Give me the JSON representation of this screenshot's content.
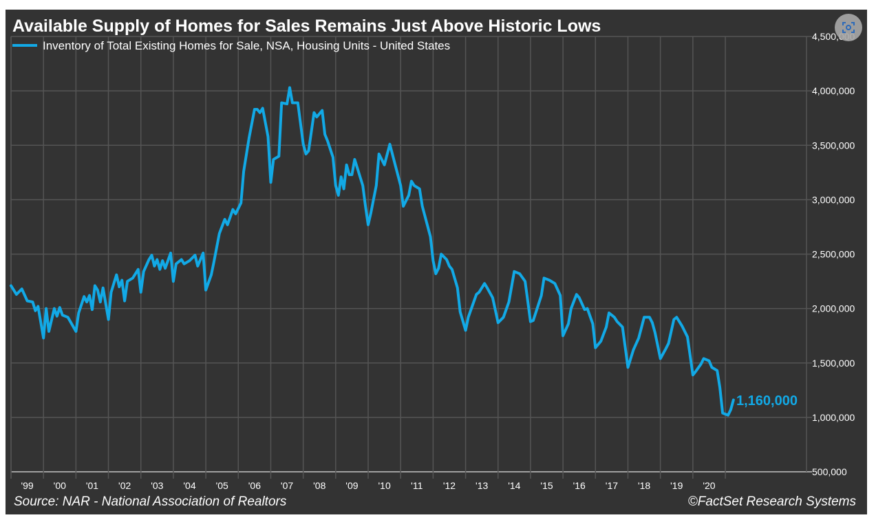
{
  "colors": {
    "background": "#333333",
    "series": "#12a9e6",
    "grid": "#555555",
    "text": "#ffffff"
  },
  "icons": {
    "lens": "visual-search-icon"
  },
  "chart_data": {
    "type": "line",
    "title": "Available Supply of Homes for Sales Remains Just Above Historic Lows",
    "xlabel": "",
    "ylabel": "",
    "ylim": [
      500000,
      4500000
    ],
    "xlim": [
      "1999-01",
      "2023-07"
    ],
    "y_axis_position": "right",
    "grid": true,
    "legend_position": "top-left",
    "yticks": [
      "4,500,000",
      "4,000,000",
      "3,500,000",
      "3,000,000",
      "2,500,000",
      "2,000,000",
      "1,500,000",
      "1,000,000",
      "500,000"
    ],
    "ytick_values": [
      4500000,
      4000000,
      3500000,
      3000000,
      2500000,
      2000000,
      1500000,
      1000000,
      500000
    ],
    "xticks": [
      "'99",
      "'00",
      "'01",
      "'02",
      "'03",
      "'04",
      "'05",
      "'06",
      "'07",
      "'08",
      "'09",
      "'10",
      "'11",
      "'12",
      "'13",
      "'14",
      "'15",
      "'16",
      "'17",
      "'18",
      "'19",
      "'20"
    ],
    "xtick_years": [
      1999,
      2000,
      2001,
      2002,
      2003,
      2004,
      2005,
      2006,
      2007,
      2008,
      2009,
      2010,
      2011,
      2012,
      2013,
      2014,
      2015,
      2016,
      2017,
      2018,
      2019,
      2020
    ],
    "annotation": "1,160,000",
    "source": "Source: NAR - National Association of Realtors",
    "credit": "©FactSet Research Systems",
    "series": [
      {
        "name": "Inventory of Total Existing Homes for Sale, NSA, Housing Units - United States",
        "points": [
          [
            "1999-01",
            2210000
          ],
          [
            "1999-03",
            2130000
          ],
          [
            "1999-05",
            2180000
          ],
          [
            "1999-07",
            2070000
          ],
          [
            "1999-09",
            2060000
          ],
          [
            "1999-10",
            1980000
          ],
          [
            "1999-11",
            2020000
          ],
          [
            "2000-01",
            1730000
          ],
          [
            "2000-02",
            2000000
          ],
          [
            "2000-03",
            1790000
          ],
          [
            "2000-05",
            2000000
          ],
          [
            "2000-06",
            1930000
          ],
          [
            "2000-07",
            2010000
          ],
          [
            "2000-08",
            1940000
          ],
          [
            "2000-10",
            1920000
          ],
          [
            "2001-01",
            1790000
          ],
          [
            "2001-02",
            1960000
          ],
          [
            "2001-04",
            2110000
          ],
          [
            "2001-05",
            2060000
          ],
          [
            "2001-06",
            2120000
          ],
          [
            "2001-07",
            1990000
          ],
          [
            "2001-08",
            2210000
          ],
          [
            "2001-09",
            2170000
          ],
          [
            "2001-10",
            2060000
          ],
          [
            "2001-11",
            2190000
          ],
          [
            "2002-01",
            1900000
          ],
          [
            "2002-02",
            2150000
          ],
          [
            "2002-03",
            2230000
          ],
          [
            "2002-04",
            2310000
          ],
          [
            "2002-05",
            2200000
          ],
          [
            "2002-06",
            2260000
          ],
          [
            "2002-07",
            2070000
          ],
          [
            "2002-08",
            2250000
          ],
          [
            "2002-10",
            2280000
          ],
          [
            "2002-12",
            2360000
          ],
          [
            "2003-01",
            2150000
          ],
          [
            "2003-02",
            2340000
          ],
          [
            "2003-04",
            2450000
          ],
          [
            "2003-05",
            2490000
          ],
          [
            "2003-06",
            2390000
          ],
          [
            "2003-07",
            2450000
          ],
          [
            "2003-08",
            2360000
          ],
          [
            "2003-09",
            2440000
          ],
          [
            "2003-10",
            2370000
          ],
          [
            "2003-12",
            2510000
          ],
          [
            "2004-01",
            2250000
          ],
          [
            "2004-02",
            2410000
          ],
          [
            "2004-04",
            2450000
          ],
          [
            "2004-05",
            2410000
          ],
          [
            "2004-07",
            2440000
          ],
          [
            "2004-09",
            2490000
          ],
          [
            "2004-10",
            2390000
          ],
          [
            "2004-12",
            2510000
          ],
          [
            "2005-01",
            2170000
          ],
          [
            "2005-03",
            2310000
          ],
          [
            "2005-04",
            2430000
          ],
          [
            "2005-06",
            2690000
          ],
          [
            "2005-08",
            2820000
          ],
          [
            "2005-09",
            2770000
          ],
          [
            "2005-11",
            2910000
          ],
          [
            "2005-12",
            2870000
          ],
          [
            "2006-02",
            2970000
          ],
          [
            "2006-03",
            3260000
          ],
          [
            "2006-05",
            3570000
          ],
          [
            "2006-07",
            3830000
          ],
          [
            "2006-08",
            3830000
          ],
          [
            "2006-09",
            3800000
          ],
          [
            "2006-10",
            3840000
          ],
          [
            "2006-12",
            3580000
          ],
          [
            "2007-01",
            3160000
          ],
          [
            "2007-02",
            3370000
          ],
          [
            "2007-04",
            3400000
          ],
          [
            "2007-05",
            3890000
          ],
          [
            "2007-07",
            3880000
          ],
          [
            "2007-08",
            4030000
          ],
          [
            "2007-09",
            3890000
          ],
          [
            "2007-11",
            3890000
          ],
          [
            "2008-01",
            3510000
          ],
          [
            "2008-02",
            3420000
          ],
          [
            "2008-03",
            3450000
          ],
          [
            "2008-05",
            3800000
          ],
          [
            "2008-06",
            3760000
          ],
          [
            "2008-08",
            3820000
          ],
          [
            "2008-09",
            3600000
          ],
          [
            "2008-10",
            3540000
          ],
          [
            "2008-12",
            3390000
          ],
          [
            "2009-01",
            3130000
          ],
          [
            "2009-02",
            3040000
          ],
          [
            "2009-03",
            3210000
          ],
          [
            "2009-04",
            3100000
          ],
          [
            "2009-05",
            3320000
          ],
          [
            "2009-06",
            3230000
          ],
          [
            "2009-07",
            3230000
          ],
          [
            "2009-08",
            3370000
          ],
          [
            "2009-11",
            3130000
          ],
          [
            "2009-12",
            2940000
          ],
          [
            "2010-01",
            2770000
          ],
          [
            "2010-02",
            2880000
          ],
          [
            "2010-04",
            3130000
          ],
          [
            "2010-05",
            3420000
          ],
          [
            "2010-07",
            3320000
          ],
          [
            "2010-09",
            3510000
          ],
          [
            "2010-11",
            3320000
          ],
          [
            "2011-01",
            3130000
          ],
          [
            "2011-02",
            2940000
          ],
          [
            "2011-04",
            3040000
          ],
          [
            "2011-05",
            3170000
          ],
          [
            "2011-06",
            3130000
          ],
          [
            "2011-08",
            3100000
          ],
          [
            "2011-09",
            2940000
          ],
          [
            "2011-12",
            2660000
          ],
          [
            "2012-01",
            2440000
          ],
          [
            "2012-02",
            2320000
          ],
          [
            "2012-03",
            2370000
          ],
          [
            "2012-04",
            2500000
          ],
          [
            "2012-06",
            2450000
          ],
          [
            "2012-07",
            2390000
          ],
          [
            "2012-08",
            2360000
          ],
          [
            "2012-10",
            2190000
          ],
          [
            "2012-11",
            1970000
          ],
          [
            "2013-01",
            1800000
          ],
          [
            "2013-02",
            1920000
          ],
          [
            "2013-05",
            2130000
          ],
          [
            "2013-06",
            2150000
          ],
          [
            "2013-08",
            2230000
          ],
          [
            "2013-09",
            2190000
          ],
          [
            "2013-11",
            2100000
          ],
          [
            "2014-01",
            1870000
          ],
          [
            "2014-03",
            1920000
          ],
          [
            "2014-05",
            2060000
          ],
          [
            "2014-07",
            2340000
          ],
          [
            "2014-09",
            2320000
          ],
          [
            "2014-11",
            2250000
          ],
          [
            "2015-01",
            1880000
          ],
          [
            "2015-02",
            1890000
          ],
          [
            "2015-05",
            2120000
          ],
          [
            "2015-06",
            2280000
          ],
          [
            "2015-08",
            2260000
          ],
          [
            "2015-10",
            2230000
          ],
          [
            "2015-12",
            2120000
          ],
          [
            "2016-01",
            1750000
          ],
          [
            "2016-03",
            1860000
          ],
          [
            "2016-04",
            2000000
          ],
          [
            "2016-06",
            2130000
          ],
          [
            "2016-07",
            2100000
          ],
          [
            "2016-09",
            1990000
          ],
          [
            "2016-10",
            2000000
          ],
          [
            "2016-12",
            1860000
          ],
          [
            "2017-01",
            1640000
          ],
          [
            "2017-03",
            1700000
          ],
          [
            "2017-05",
            1830000
          ],
          [
            "2017-06",
            1960000
          ],
          [
            "2017-08",
            1920000
          ],
          [
            "2017-09",
            1880000
          ],
          [
            "2017-11",
            1830000
          ],
          [
            "2018-01",
            1460000
          ],
          [
            "2018-03",
            1620000
          ],
          [
            "2018-05",
            1730000
          ],
          [
            "2018-07",
            1920000
          ],
          [
            "2018-09",
            1920000
          ],
          [
            "2018-10",
            1870000
          ],
          [
            "2018-11",
            1780000
          ],
          [
            "2019-01",
            1540000
          ],
          [
            "2019-03",
            1630000
          ],
          [
            "2019-04",
            1680000
          ],
          [
            "2019-06",
            1900000
          ],
          [
            "2019-07",
            1920000
          ],
          [
            "2019-09",
            1840000
          ],
          [
            "2019-11",
            1740000
          ],
          [
            "2020-01",
            1390000
          ],
          [
            "2020-02",
            1420000
          ],
          [
            "2020-04",
            1490000
          ],
          [
            "2020-05",
            1540000
          ],
          [
            "2020-07",
            1520000
          ],
          [
            "2020-08",
            1460000
          ],
          [
            "2020-10",
            1430000
          ],
          [
            "2020-11",
            1270000
          ],
          [
            "2020-12",
            1040000
          ],
          [
            "2021-01",
            1030000
          ],
          [
            "2021-02",
            1020000
          ],
          [
            "2021-03",
            1070000
          ],
          [
            "2021-04",
            1160000
          ]
        ]
      }
    ]
  }
}
